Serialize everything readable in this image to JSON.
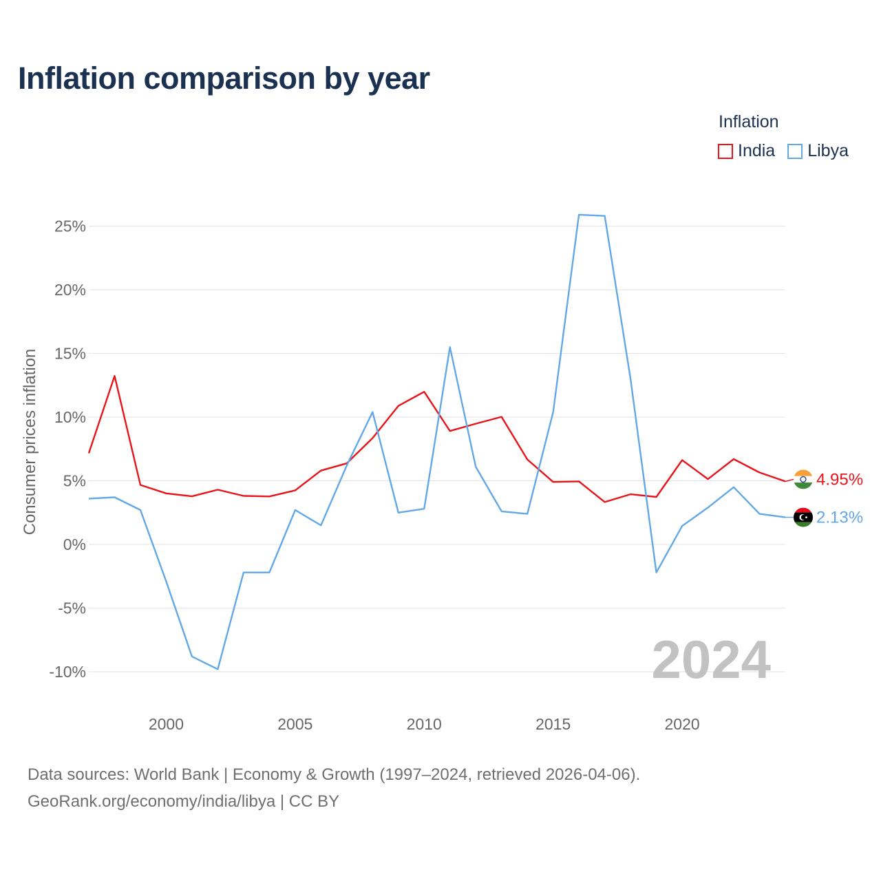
{
  "header": {
    "title": "Inflation comparison by year"
  },
  "legend": {
    "title": "Inflation",
    "items": [
      {
        "label": "India",
        "color": "#e8141a"
      },
      {
        "label": "Libya",
        "color": "#62a8e6"
      }
    ]
  },
  "footer": {
    "line1": "Data sources: World Bank | Economy & Growth (1997–2024, retrieved 2026-04-06).",
    "line2": "GeoRank.org/economy/india/libya | CC BY"
  },
  "chart_data": {
    "type": "line",
    "title": "Inflation comparison by year",
    "xlabel": "",
    "ylabel": "Consumer prices inflation",
    "xlim": [
      1997,
      2024
    ],
    "ylim": [
      -12,
      27
    ],
    "yticks": [
      25,
      20,
      15,
      10,
      5,
      0,
      -5,
      -10
    ],
    "ytick_labels": [
      "25%",
      "20%",
      "15%",
      "10%",
      "5%",
      "0%",
      "-5%",
      "-10%"
    ],
    "xticks": [
      2000,
      2005,
      2010,
      2015,
      2020
    ],
    "xtick_labels": [
      "2000",
      "2005",
      "2010",
      "2015",
      "2020"
    ],
    "grid": true,
    "legend_position": "top-right",
    "annotation": "2024",
    "x": [
      1997,
      1998,
      1999,
      2000,
      2001,
      2002,
      2003,
      2004,
      2005,
      2006,
      2007,
      2008,
      2009,
      2010,
      2011,
      2012,
      2013,
      2014,
      2015,
      2016,
      2017,
      2018,
      2019,
      2020,
      2021,
      2022,
      2023,
      2024
    ],
    "series": [
      {
        "name": "India",
        "color": "#e8141a",
        "end_label": "4.95%",
        "flag": "india-flag",
        "values": [
          7.16,
          13.23,
          4.67,
          4.01,
          3.78,
          4.3,
          3.81,
          3.77,
          4.25,
          5.8,
          6.37,
          8.35,
          10.88,
          11.99,
          8.91,
          9.48,
          10.02,
          6.67,
          4.91,
          4.95,
          3.33,
          3.94,
          3.73,
          6.62,
          5.13,
          6.7,
          5.65,
          4.95
        ]
      },
      {
        "name": "Libya",
        "color": "#62a8e6",
        "end_label": "2.13%",
        "flag": "libya-flag",
        "values": [
          3.6,
          3.7,
          2.7,
          -2.9,
          -8.8,
          -9.8,
          -2.2,
          -2.2,
          2.7,
          1.5,
          6.2,
          10.4,
          2.5,
          2.8,
          15.5,
          6.1,
          2.6,
          2.4,
          10.4,
          25.9,
          25.8,
          13.0,
          -2.2,
          1.45,
          2.9,
          4.5,
          2.4,
          2.13
        ]
      }
    ]
  }
}
